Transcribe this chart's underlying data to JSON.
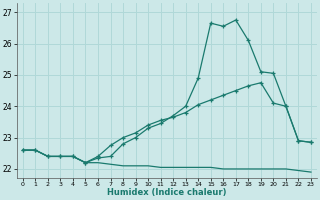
{
  "xlabel": "Humidex (Indice chaleur)",
  "xlim": [
    -0.5,
    23.5
  ],
  "ylim": [
    21.7,
    27.3
  ],
  "yticks": [
    22,
    23,
    24,
    25,
    26,
    27
  ],
  "xticks": [
    0,
    1,
    2,
    3,
    4,
    5,
    6,
    7,
    8,
    9,
    10,
    11,
    12,
    13,
    14,
    15,
    16,
    17,
    18,
    19,
    20,
    21,
    22,
    23
  ],
  "bg_color": "#cce8e8",
  "grid_color": "#b0d8d8",
  "line_color": "#1a7a6e",
  "line1_x": [
    0,
    1,
    2,
    3,
    4,
    5,
    6,
    7,
    8,
    9,
    10,
    11,
    12,
    13,
    14,
    15,
    16,
    17,
    18,
    19,
    20,
    21,
    22,
    23
  ],
  "line1_y": [
    22.6,
    22.6,
    22.4,
    22.4,
    22.4,
    22.2,
    22.35,
    22.4,
    22.8,
    23.0,
    23.3,
    23.45,
    23.7,
    24.0,
    24.9,
    26.65,
    26.55,
    26.75,
    26.1,
    25.1,
    25.05,
    24.0,
    22.9,
    22.85
  ],
  "line2_x": [
    0,
    1,
    2,
    3,
    4,
    5,
    6,
    7,
    8,
    9,
    10,
    11,
    12,
    13,
    14,
    15,
    16,
    17,
    18,
    19,
    20,
    21,
    22,
    23
  ],
  "line2_y": [
    22.6,
    22.6,
    22.4,
    22.4,
    22.4,
    22.2,
    22.4,
    22.75,
    23.0,
    23.15,
    23.4,
    23.55,
    23.65,
    23.8,
    24.05,
    24.2,
    24.35,
    24.5,
    24.65,
    24.75,
    24.1,
    24.0,
    22.9,
    22.85
  ],
  "line3_x": [
    0,
    1,
    2,
    3,
    4,
    5,
    6,
    7,
    8,
    9,
    10,
    11,
    12,
    13,
    14,
    15,
    16,
    17,
    18,
    19,
    20,
    21,
    22,
    23
  ],
  "line3_y": [
    22.6,
    22.6,
    22.4,
    22.4,
    22.4,
    22.2,
    22.2,
    22.15,
    22.1,
    22.1,
    22.1,
    22.05,
    22.05,
    22.05,
    22.05,
    22.05,
    22.0,
    22.0,
    22.0,
    22.0,
    22.0,
    22.0,
    21.95,
    21.9
  ]
}
